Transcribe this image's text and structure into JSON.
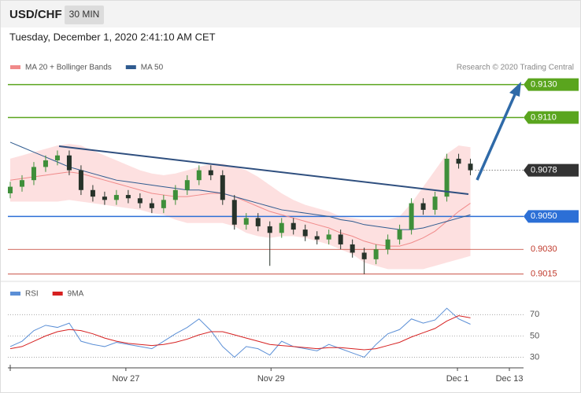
{
  "header": {
    "symbol": "USD/CHF",
    "interval": "30 MIN",
    "timestamp": "Tuesday, December 1, 2020 2:41:10 AM CET"
  },
  "chart_data": [
    {
      "type": "candlestick",
      "attribution": "Research © 2020 Trading Central",
      "up_color": "#3f8f3a",
      "down_color": "#27332a",
      "open": [
        0.9064,
        0.9068,
        0.9072,
        0.908,
        0.9084,
        0.9087,
        0.9078,
        0.9066,
        0.9062,
        0.906,
        0.9063,
        0.9061,
        0.9058,
        0.9055,
        0.906,
        0.9066,
        0.9072,
        0.9078,
        0.9075,
        0.906,
        0.9045,
        0.9049,
        0.9044,
        0.904,
        0.9046,
        0.9042,
        0.9038,
        0.9036,
        0.9039,
        0.9033,
        0.9028,
        0.9024,
        0.903,
        0.9036,
        0.9042,
        0.9058,
        0.9054,
        0.9062,
        0.9085,
        0.9082
      ],
      "high": [
        0.9071,
        0.9075,
        0.9083,
        0.9087,
        0.909,
        0.909,
        0.9081,
        0.9069,
        0.9065,
        0.9066,
        0.9066,
        0.9064,
        0.9061,
        0.9063,
        0.9069,
        0.9075,
        0.9081,
        0.9081,
        0.9078,
        0.9063,
        0.9052,
        0.9052,
        0.9047,
        0.9049,
        0.9049,
        0.9045,
        0.9041,
        0.9042,
        0.9042,
        0.9036,
        0.9031,
        0.9033,
        0.9039,
        0.9045,
        0.9061,
        0.9061,
        0.9065,
        0.9088,
        0.9088,
        0.9085
      ],
      "low": [
        0.9061,
        0.9065,
        0.9069,
        0.9077,
        0.9081,
        0.9075,
        0.9063,
        0.9059,
        0.9057,
        0.9057,
        0.9058,
        0.9055,
        0.9052,
        0.9052,
        0.9057,
        0.9063,
        0.9069,
        0.9072,
        0.9057,
        0.9042,
        0.9042,
        0.9041,
        0.902,
        0.9037,
        0.9039,
        0.9035,
        0.9033,
        0.9033,
        0.903,
        0.9025,
        0.9015,
        0.9021,
        0.9027,
        0.9033,
        0.9039,
        0.9051,
        0.9051,
        0.9059,
        0.9079,
        0.9075
      ],
      "close": [
        0.9068,
        0.9072,
        0.908,
        0.9084,
        0.9087,
        0.9078,
        0.9066,
        0.9062,
        0.906,
        0.9063,
        0.9061,
        0.9058,
        0.9055,
        0.906,
        0.9066,
        0.9072,
        0.9078,
        0.9075,
        0.906,
        0.9045,
        0.9049,
        0.9044,
        0.904,
        0.9046,
        0.9042,
        0.9038,
        0.9036,
        0.9039,
        0.9033,
        0.9028,
        0.9024,
        0.903,
        0.9036,
        0.9042,
        0.9058,
        0.9054,
        0.9062,
        0.9085,
        0.9082,
        0.9078
      ],
      "series": [
        {
          "name": "MA 20 + Bollinger Bands",
          "color": "#f08a8a",
          "band_color": "#fde0e0",
          "values": [
            0.9072,
            0.9073,
            0.9074,
            0.9075,
            0.9076,
            0.9077,
            0.9076,
            0.9074,
            0.9072,
            0.907,
            0.9068,
            0.9066,
            0.9064,
            0.9063,
            0.9062,
            0.9062,
            0.9063,
            0.9064,
            0.9064,
            0.9062,
            0.9059,
            0.9056,
            0.9053,
            0.9051,
            0.9049,
            0.9047,
            0.9045,
            0.9043,
            0.904,
            0.9038,
            0.9035,
            0.9033,
            0.9032,
            0.9032,
            0.9034,
            0.9037,
            0.9041,
            0.9047,
            0.9053,
            0.9058
          ],
          "upper": [
            0.9085,
            0.9087,
            0.9089,
            0.9091,
            0.9093,
            0.9094,
            0.9093,
            0.909,
            0.9087,
            0.9084,
            0.9081,
            0.9078,
            0.9076,
            0.9075,
            0.9076,
            0.9078,
            0.908,
            0.9082,
            0.9082,
            0.908,
            0.9078,
            0.9074,
            0.9069,
            0.9064,
            0.906,
            0.9057,
            0.9055,
            0.9053,
            0.905,
            0.9049,
            0.9048,
            0.9048,
            0.9048,
            0.905,
            0.9058,
            0.9068,
            0.9078,
            0.9088,
            0.9093,
            0.9092
          ],
          "lower": [
            0.9059,
            0.9059,
            0.9059,
            0.9059,
            0.9059,
            0.906,
            0.9059,
            0.9058,
            0.9057,
            0.9056,
            0.9055,
            0.9054,
            0.9052,
            0.9051,
            0.9048,
            0.9046,
            0.9046,
            0.9046,
            0.9046,
            0.9044,
            0.904,
            0.9038,
            0.9037,
            0.9038,
            0.9038,
            0.9037,
            0.9035,
            0.9033,
            0.903,
            0.9027,
            0.9022,
            0.902,
            0.9018,
            0.9018,
            0.9018,
            0.9018,
            0.902,
            0.9022,
            0.9024,
            0.9026
          ]
        },
        {
          "name": "MA 50",
          "color": "#2f5b8f",
          "values": [
            0.9095,
            0.9092,
            0.9089,
            0.9086,
            0.9083,
            0.908,
            0.9078,
            0.9076,
            0.9074,
            0.9072,
            0.9071,
            0.907,
            0.9069,
            0.9068,
            0.9067,
            0.9066,
            0.9066,
            0.9065,
            0.9064,
            0.9062,
            0.906,
            0.9058,
            0.9056,
            0.9054,
            0.9053,
            0.9052,
            0.9051,
            0.905,
            0.9048,
            0.9047,
            0.9045,
            0.9044,
            0.9043,
            0.9042,
            0.9042,
            0.9043,
            0.9045,
            0.9047,
            0.9049,
            0.9051
          ]
        }
      ],
      "levels": [
        {
          "value": 0.913,
          "label": "0.9130",
          "color": "#5aa51e",
          "boxed": true,
          "dotted": false
        },
        {
          "value": 0.911,
          "label": "0.9110",
          "color": "#5aa51e",
          "boxed": true,
          "dotted": false
        },
        {
          "value": 0.9078,
          "label": "0.9078",
          "color": "#333333",
          "boxed": true,
          "dotted": true
        },
        {
          "value": 0.905,
          "label": "0.9050",
          "color": "#2c6fd6",
          "boxed": true,
          "dotted": false
        },
        {
          "value": 0.903,
          "label": "0.9030",
          "color": "#c0392b",
          "boxed": false,
          "dotted": false
        },
        {
          "value": 0.9015,
          "label": "0.9015",
          "color": "#c0392b",
          "boxed": false,
          "dotted": false
        }
      ],
      "xlim": [
        -0.2,
        43.5
      ],
      "ylim": [
        0.9012,
        0.9136
      ]
    },
    {
      "type": "line",
      "series": [
        {
          "name": "RSI",
          "color": "#5b8fd6",
          "values": [
            40,
            45,
            55,
            60,
            58,
            62,
            45,
            42,
            40,
            44,
            42,
            40,
            38,
            45,
            52,
            58,
            66,
            55,
            40,
            30,
            40,
            38,
            32,
            45,
            40,
            38,
            36,
            42,
            38,
            34,
            30,
            42,
            52,
            56,
            66,
            62,
            65,
            76,
            66,
            61
          ]
        },
        {
          "name": "9MA",
          "color": "#d62020",
          "values": [
            38,
            40,
            45,
            50,
            54,
            56,
            55,
            52,
            48,
            45,
            43,
            42,
            41,
            42,
            44,
            47,
            51,
            54,
            54,
            51,
            48,
            45,
            42,
            41,
            40,
            39,
            38,
            39,
            39,
            38,
            37,
            38,
            41,
            44,
            49,
            53,
            57,
            64,
            69,
            67
          ]
        }
      ],
      "xlim": [
        -0.2,
        43.5
      ],
      "xticks": [
        {
          "value": 9.8,
          "label": "Nov 27"
        },
        {
          "value": 22.1,
          "label": "Nov 29"
        },
        {
          "value": 37.9,
          "label": "Dec 1"
        },
        {
          "value": 42.3,
          "label": "Dec 13"
        }
      ],
      "ylim": [
        20,
        85
      ],
      "yticks": [
        70,
        50,
        30
      ],
      "grid": true
    }
  ]
}
